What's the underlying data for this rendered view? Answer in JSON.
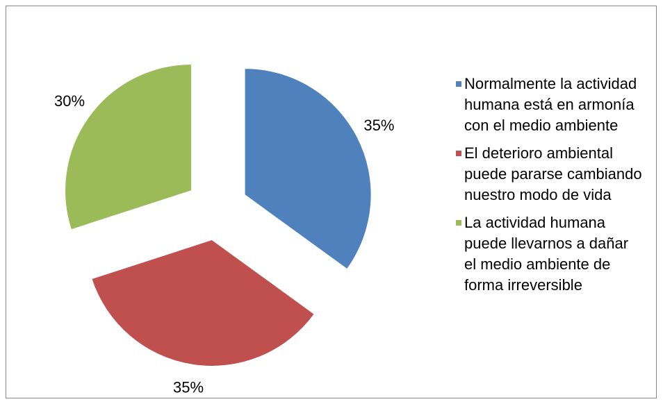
{
  "chart_data": {
    "type": "pie",
    "categories": [
      "Normalmente la actividad humana está en armonía con el medio ambiente",
      "El deterioro ambiental puede pararse cambiando nuestro modo de vida",
      "La actividad humana puede llevarnos a dañar el medio ambiente de forma irreversible"
    ],
    "values": [
      35,
      35,
      30
    ],
    "value_labels": [
      "35%",
      "35%",
      "30%"
    ],
    "colors": [
      "#4f81bd",
      "#c0504d",
      "#9bbb59"
    ],
    "legend": "right"
  }
}
